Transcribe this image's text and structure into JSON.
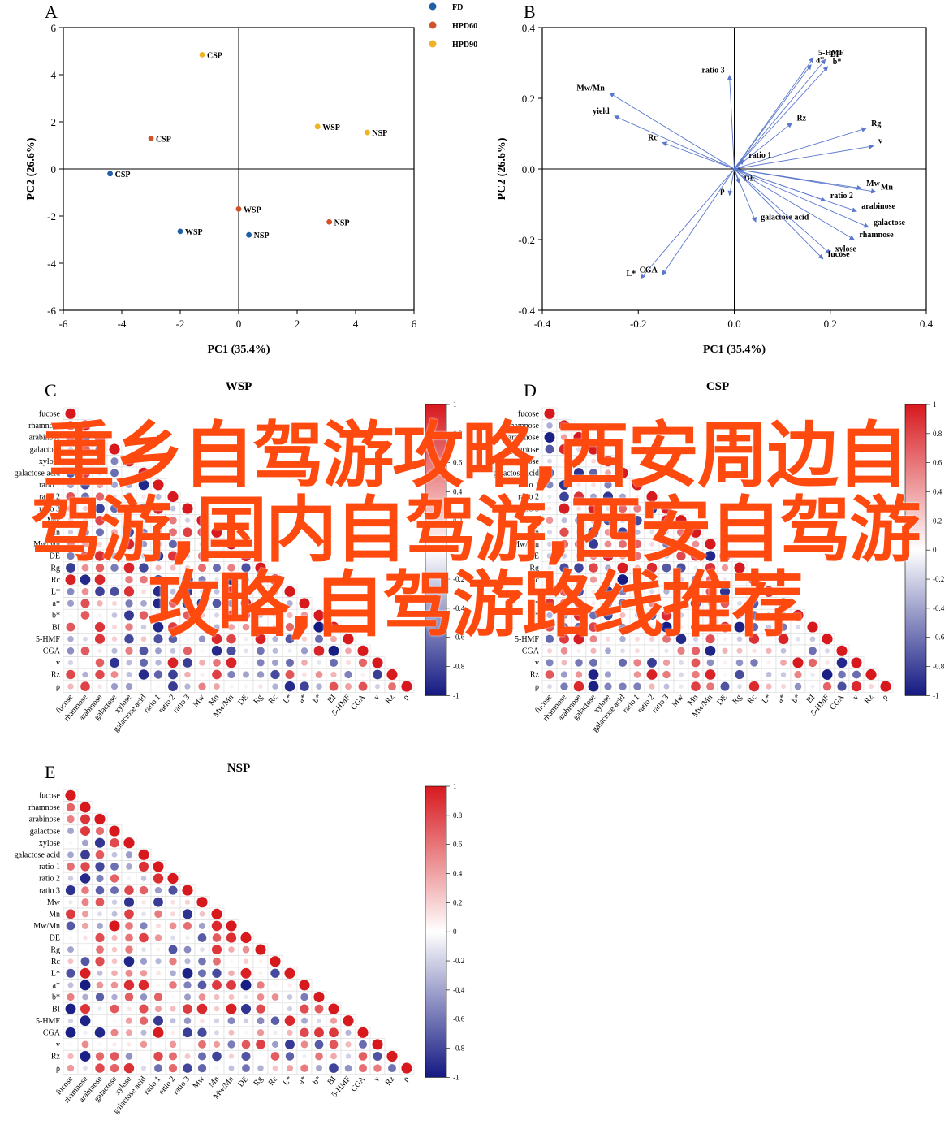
{
  "overlay_text": "重乡自驾游攻略,西安周边自驾游,国内自驾游,西安自驾游攻略,自驾游路线推荐",
  "chart_data": [
    {
      "panel": "A",
      "type": "scatter",
      "xlabel": "PC1 (35.4%)",
      "ylabel": "PC2 (26.6%)",
      "xlim": [
        -6,
        6
      ],
      "ylim": [
        -6,
        6
      ],
      "xticks": [
        -6,
        -4,
        -2,
        0,
        2,
        4,
        6
      ],
      "yticks": [
        -6,
        -4,
        -2,
        0,
        2,
        4,
        6
      ],
      "legend_position": "top-center",
      "series": [
        {
          "name": "FD",
          "color": "#1f5fa8",
          "points": [
            {
              "x": -4.4,
              "y": -0.2,
              "label": "CSP"
            },
            {
              "x": -2.0,
              "y": -2.65,
              "label": "WSP"
            },
            {
              "x": 0.35,
              "y": -2.8,
              "label": "NSP"
            }
          ]
        },
        {
          "name": "HPD60",
          "color": "#d2532a",
          "points": [
            {
              "x": -3.0,
              "y": 1.3,
              "label": "CSP"
            },
            {
              "x": 0.0,
              "y": -1.7,
              "label": "WSP"
            },
            {
              "x": 3.1,
              "y": -2.25,
              "label": "NSP"
            }
          ]
        },
        {
          "name": "HPD90",
          "color": "#f0b323",
          "points": [
            {
              "x": -1.25,
              "y": 4.85,
              "label": "CSP"
            },
            {
              "x": 2.7,
              "y": 1.8,
              "label": "WSP"
            },
            {
              "x": 4.4,
              "y": 1.55,
              "label": "NSP"
            }
          ]
        }
      ]
    },
    {
      "panel": "B",
      "type": "biplot",
      "xlabel": "PC1 (35.4%)",
      "ylabel": "PC2 (26.6%)",
      "xlim": [
        -0.4,
        0.4
      ],
      "ylim": [
        -0.4,
        0.4
      ],
      "xticks": [
        "-0.4",
        "-0.2",
        "0.0",
        "0.2",
        "0.4"
      ],
      "yticks": [
        "-0.4",
        "-0.2",
        "0.0",
        "0.2",
        "0.4"
      ],
      "arrow_color": "#5b78cc",
      "vectors": [
        {
          "label": "5-HMF",
          "x": 0.165,
          "y": 0.315
        },
        {
          "label": "BI",
          "x": 0.19,
          "y": 0.31
        },
        {
          "label": "a*",
          "x": 0.16,
          "y": 0.295
        },
        {
          "label": "b*",
          "x": 0.195,
          "y": 0.29
        },
        {
          "label": "ratio 3",
          "x": -0.01,
          "y": 0.265
        },
        {
          "label": "Mw/Mn",
          "x": -0.26,
          "y": 0.215
        },
        {
          "label": "yield",
          "x": -0.25,
          "y": 0.15
        },
        {
          "label": "Rc",
          "x": -0.15,
          "y": 0.075
        },
        {
          "label": "Rz",
          "x": 0.12,
          "y": 0.13
        },
        {
          "label": "Rg",
          "x": 0.275,
          "y": 0.115
        },
        {
          "label": "v",
          "x": 0.29,
          "y": 0.065
        },
        {
          "label": "ratio 1",
          "x": 0.02,
          "y": 0.025
        },
        {
          "label": "DE",
          "x": 0.01,
          "y": -0.04
        },
        {
          "label": "ρ",
          "x": -0.01,
          "y": -0.075
        },
        {
          "label": "Mw",
          "x": 0.265,
          "y": -0.055
        },
        {
          "label": "Mn",
          "x": 0.295,
          "y": -0.065
        },
        {
          "label": "ratio 2",
          "x": 0.19,
          "y": -0.09
        },
        {
          "label": "arabinose",
          "x": 0.255,
          "y": -0.12
        },
        {
          "label": "galactose",
          "x": 0.28,
          "y": -0.165
        },
        {
          "label": "rhamnose",
          "x": 0.25,
          "y": -0.2
        },
        {
          "label": "galactose acid",
          "x": 0.045,
          "y": -0.15
        },
        {
          "label": "xylose",
          "x": 0.2,
          "y": -0.24
        },
        {
          "label": "fucose",
          "x": 0.185,
          "y": -0.255
        },
        {
          "label": "L*",
          "x": -0.195,
          "y": -0.31
        },
        {
          "label": "CGA",
          "x": -0.15,
          "y": -0.3
        }
      ]
    },
    {
      "panel": "C",
      "type": "heatmap",
      "title": "WSP",
      "variables": [
        "fucose",
        "rhamnose",
        "arabinose",
        "galactose",
        "xylose",
        "galactose acid",
        "ratio 1",
        "ratio 2",
        "ratio 3",
        "Mw",
        "Mn",
        "Mw/Mn",
        "DE",
        "Rg",
        "Rc",
        "L*",
        "a*",
        "b*",
        "BI",
        "5-HMF",
        "CGA",
        "v",
        "Rz",
        "ρ"
      ],
      "colorbar_ticks": [
        "1",
        "0.8",
        "0.6",
        "0.4",
        "0.2",
        "0",
        "-0.2",
        "-0.4",
        "-0.6",
        "-0.8",
        "-1"
      ]
    },
    {
      "panel": "D",
      "type": "heatmap",
      "title": "CSP",
      "variables": [
        "fucose",
        "rhamnose",
        "arabinose",
        "galactose",
        "xylose",
        "galactose acid",
        "ratio 1",
        "ratio 2",
        "ratio 3",
        "Mw",
        "Mn",
        "Mw/Mn",
        "DE",
        "Rg",
        "Rc",
        "L*",
        "a*",
        "b*",
        "BI",
        "5-HMF",
        "CGA",
        "v",
        "Rz",
        "ρ"
      ],
      "colorbar_ticks": [
        "1",
        "0.8",
        "0.6",
        "0.4",
        "0.2",
        "0",
        "-0.2",
        "-0.4",
        "-0.6",
        "-0.8",
        "-1"
      ]
    },
    {
      "panel": "E",
      "type": "heatmap",
      "title": "NSP",
      "variables": [
        "fucose",
        "rhamnose",
        "arabinose",
        "galactose",
        "xylose",
        "galactose acid",
        "ratio 1",
        "ratio 2",
        "ratio 3",
        "Mw",
        "Mn",
        "Mw/Mn",
        "DE",
        "Rg",
        "Rc",
        "L*",
        "a*",
        "b*",
        "BI",
        "5-HMF",
        "CGA",
        "v",
        "Rz",
        "ρ"
      ],
      "colorbar_ticks": [
        "1",
        "0.8",
        "0.6",
        "0.4",
        "0.2",
        "0",
        "-0.2",
        "-0.4",
        "-0.6",
        "-0.8",
        "-1"
      ]
    }
  ]
}
